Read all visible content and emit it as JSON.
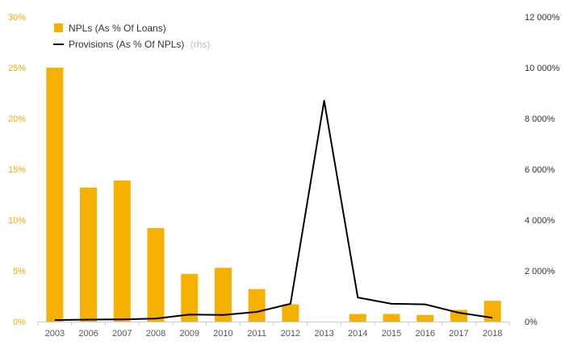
{
  "chart_data": {
    "type": "bar",
    "categories": [
      "2003",
      "2006",
      "2007",
      "2008",
      "2009",
      "2010",
      "2011",
      "2012",
      "2013",
      "2014",
      "2015",
      "2016",
      "2017",
      "2018"
    ],
    "series": [
      {
        "name": "NPLs (As % Of Loans)",
        "kind": "bar",
        "axis": "left",
        "color": "#f5b000",
        "values": [
          25.0,
          13.2,
          13.9,
          9.2,
          4.7,
          5.3,
          3.2,
          1.7,
          null,
          0.75,
          0.75,
          0.65,
          1.15,
          2.05
        ]
      },
      {
        "name": "Provisions (As % Of NPLs)",
        "name_note": "(rhs)",
        "kind": "line",
        "axis": "right",
        "color": "#000000",
        "values": [
          60,
          80,
          90,
          120,
          280,
          260,
          380,
          700,
          8700,
          950,
          700,
          680,
          350,
          150
        ]
      }
    ],
    "left_axis": {
      "ylim": [
        0,
        30
      ],
      "ticks": [
        0,
        5,
        10,
        15,
        20,
        25,
        30
      ],
      "tick_labels": [
        "0%",
        "5%",
        "10%",
        "15%",
        "20%",
        "25%",
        "30%"
      ]
    },
    "right_axis": {
      "ylim": [
        0,
        12000
      ],
      "ticks": [
        0,
        2000,
        4000,
        6000,
        8000,
        10000,
        12000
      ],
      "tick_labels": [
        "0%",
        "2 000%",
        "4 000%",
        "6 000%",
        "8 000%",
        "10 000%",
        "12 000%"
      ]
    },
    "legend_position": "top-left",
    "grid": false
  }
}
